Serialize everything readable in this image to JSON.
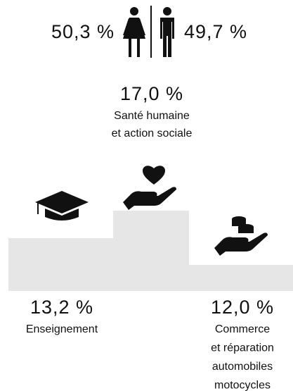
{
  "gender": {
    "female": "50,3 %",
    "male": "49,7 %"
  },
  "sectors": [
    {
      "value": "17,0 %",
      "label": [
        "Santé humaine",
        "et action sociale"
      ]
    },
    {
      "value": "13,2 %",
      "label": [
        "Enseignement"
      ]
    },
    {
      "value": "12,0 %",
      "label": [
        "Commerce",
        "et réparation",
        "automobiles",
        "motocycles"
      ]
    }
  ]
}
